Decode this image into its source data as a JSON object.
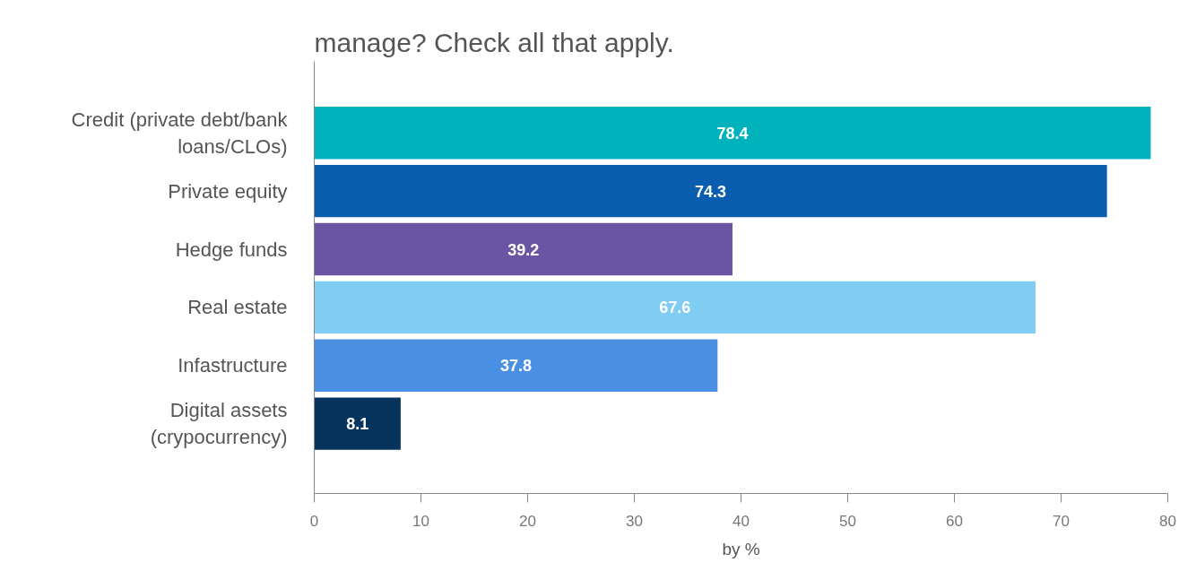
{
  "chart_data": {
    "type": "bar",
    "orientation": "horizontal",
    "title": "manage? Check all that apply.",
    "xlabel": "by %",
    "categories": [
      "Credit (private debt/bank loans/CLOs)",
      "Private equity",
      "Hedge funds",
      "Real estate",
      "Infastructure",
      "Digital assets (crypocurrency)"
    ],
    "values": [
      78.4,
      74.3,
      39.2,
      67.6,
      37.8,
      8.1
    ],
    "colors": [
      "#00b2bb",
      "#0a5eb0",
      "#6a55a5",
      "#7fcdf2",
      "#4a90e2",
      "#06345f"
    ],
    "xlim": [
      0,
      80
    ],
    "xticks": [
      0,
      10,
      20,
      30,
      40,
      50,
      60,
      70,
      80
    ],
    "data_labels": true,
    "grid": false
  }
}
